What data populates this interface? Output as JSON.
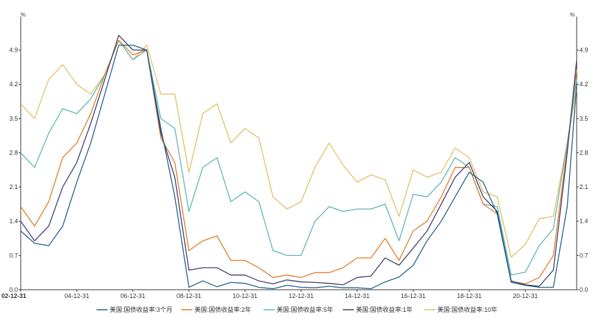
{
  "chart_data": {
    "type": "line",
    "title": "",
    "xlabel": "",
    "ylabel": "",
    "y_unit": "%",
    "ylim": [
      0,
      5.5
    ],
    "y_ticks": [
      "0.0",
      "0.7",
      "1.4",
      "2.1",
      "2.8",
      "3.5",
      "4.2",
      "4.9"
    ],
    "x_ticks": [
      "02-12-31",
      "04-12-31",
      "06-12-31",
      "08-12-31",
      "10-12-31",
      "12-12-31",
      "14-12-31",
      "16-12-31",
      "18-12-31",
      "20-12-31"
    ],
    "x": [
      "2002-12-31",
      "2003-06-30",
      "2003-12-31",
      "2004-06-30",
      "2004-12-31",
      "2005-06-30",
      "2005-12-31",
      "2006-06-30",
      "2006-12-31",
      "2007-06-30",
      "2007-12-31",
      "2008-06-30",
      "2008-12-31",
      "2009-06-30",
      "2009-12-31",
      "2010-06-30",
      "2010-12-31",
      "2011-06-30",
      "2011-12-31",
      "2012-06-30",
      "2012-12-31",
      "2013-06-30",
      "2013-12-31",
      "2014-06-30",
      "2014-12-31",
      "2015-06-30",
      "2015-12-31",
      "2016-06-30",
      "2016-12-31",
      "2017-06-30",
      "2017-12-31",
      "2018-06-30",
      "2018-12-31",
      "2019-06-30",
      "2019-12-31",
      "2020-06-30",
      "2020-12-31",
      "2021-06-30",
      "2021-12-31",
      "2022-06-30",
      "2022-10-31"
    ],
    "series": [
      {
        "name": "美国:国债收益率:3个月",
        "color": "#1f5f8b",
        "values": [
          1.2,
          0.95,
          0.9,
          1.3,
          2.2,
          3.0,
          4.0,
          5.0,
          5.0,
          4.9,
          3.3,
          1.9,
          0.05,
          0.18,
          0.06,
          0.15,
          0.13,
          0.05,
          0.02,
          0.09,
          0.05,
          0.04,
          0.07,
          0.04,
          0.04,
          0.02,
          0.16,
          0.26,
          0.5,
          1.0,
          1.4,
          1.9,
          2.4,
          2.2,
          1.55,
          0.15,
          0.09,
          0.05,
          0.05,
          1.7,
          4.2
        ]
      },
      {
        "name": "美国:国债收益率:2年",
        "color": "#e07b24",
        "values": [
          1.7,
          1.3,
          1.8,
          2.7,
          3.0,
          3.6,
          4.4,
          5.1,
          4.8,
          4.9,
          3.1,
          2.6,
          0.8,
          1.0,
          1.1,
          0.6,
          0.6,
          0.45,
          0.25,
          0.3,
          0.25,
          0.35,
          0.35,
          0.45,
          0.65,
          0.65,
          1.05,
          0.6,
          1.2,
          1.4,
          1.9,
          2.5,
          2.5,
          1.75,
          1.55,
          0.17,
          0.12,
          0.25,
          0.7,
          2.9,
          4.5
        ]
      },
      {
        "name": "美国:国债收益率:5年",
        "color": "#5bb5b5",
        "values": [
          2.8,
          2.5,
          3.2,
          3.7,
          3.6,
          3.9,
          4.4,
          5.1,
          4.7,
          4.9,
          3.5,
          3.3,
          1.6,
          2.5,
          2.7,
          1.8,
          2.0,
          1.8,
          0.8,
          0.7,
          0.7,
          1.4,
          1.7,
          1.6,
          1.65,
          1.65,
          1.75,
          1.0,
          1.95,
          1.9,
          2.2,
          2.7,
          2.5,
          1.75,
          1.7,
          0.3,
          0.36,
          0.9,
          1.25,
          3.0,
          4.3
        ]
      },
      {
        "name": "美国:国债收益率:1年",
        "color": "#3a3a6e",
        "values": [
          1.4,
          1.0,
          1.3,
          2.1,
          2.6,
          3.4,
          4.3,
          5.2,
          4.9,
          4.9,
          3.2,
          2.3,
          0.4,
          0.45,
          0.45,
          0.3,
          0.3,
          0.18,
          0.12,
          0.2,
          0.16,
          0.15,
          0.13,
          0.1,
          0.25,
          0.28,
          0.65,
          0.5,
          0.85,
          1.2,
          1.75,
          2.3,
          2.6,
          1.9,
          1.6,
          0.18,
          0.1,
          0.07,
          0.4,
          2.8,
          4.7
        ]
      },
      {
        "name": "美国:国债收益率:10年",
        "color": "#e0c060",
        "values": [
          3.8,
          3.5,
          4.3,
          4.6,
          4.2,
          4.0,
          4.4,
          5.1,
          4.7,
          5.0,
          4.0,
          4.0,
          2.4,
          3.6,
          3.8,
          3.0,
          3.3,
          3.1,
          1.9,
          1.65,
          1.8,
          2.5,
          3.0,
          2.55,
          2.2,
          2.35,
          2.25,
          1.5,
          2.45,
          2.3,
          2.4,
          2.9,
          2.7,
          2.0,
          1.9,
          0.66,
          0.93,
          1.45,
          1.5,
          3.0,
          4.1
        ]
      }
    ],
    "legend_position": "bottom",
    "grid": false
  }
}
